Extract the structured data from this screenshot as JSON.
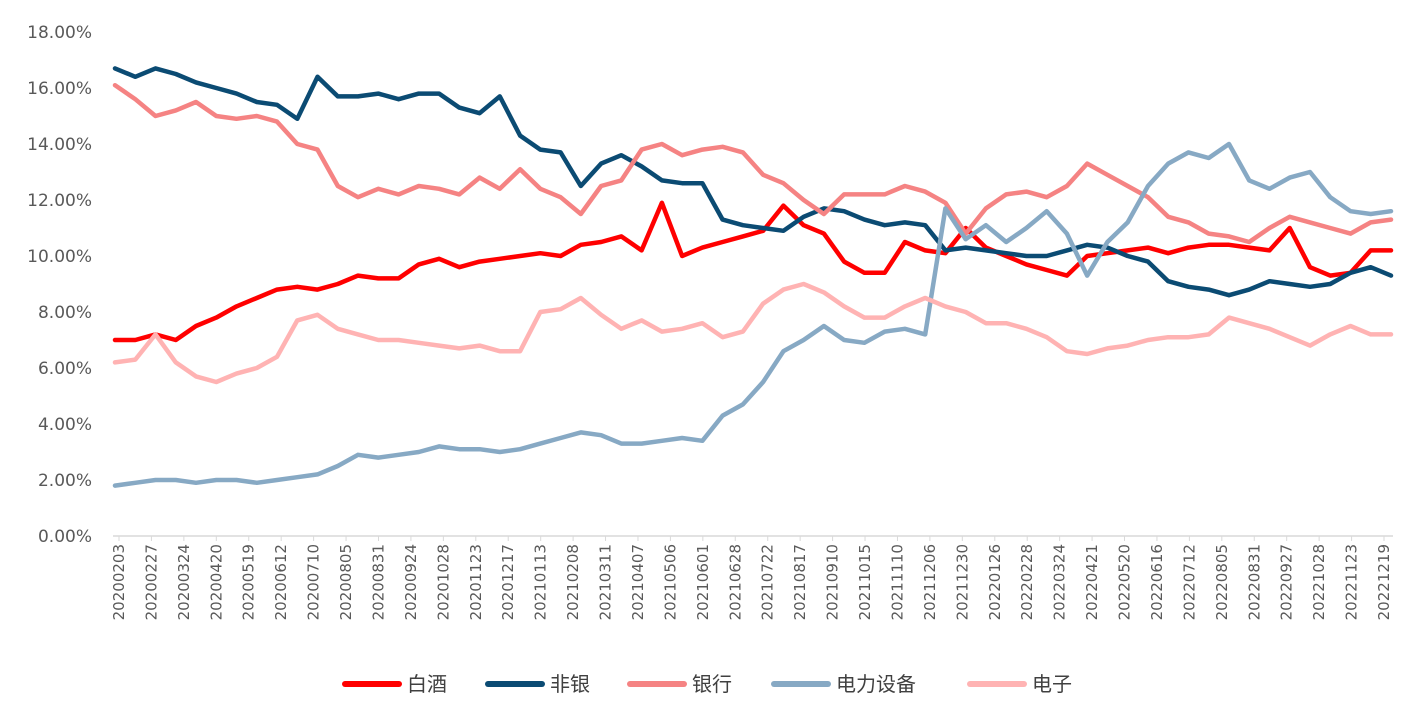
{
  "chart_data": {
    "type": "line",
    "title": "",
    "xlabel": "",
    "ylabel": "",
    "ylim": [
      0,
      0.18
    ],
    "y_ticks": [
      "0.00%",
      "2.00%",
      "4.00%",
      "6.00%",
      "8.00%",
      "10.00%",
      "12.00%",
      "14.00%",
      "16.00%",
      "18.00%"
    ],
    "x_ticks": [
      "20200203",
      "20200227",
      "20200324",
      "20200420",
      "20200519",
      "20200612",
      "20200710",
      "20200805",
      "20200831",
      "20200924",
      "20201028",
      "20201123",
      "20201217",
      "20210113",
      "20210208",
      "20210311",
      "20210407",
      "20210506",
      "20210601",
      "20210628",
      "20210722",
      "20210817",
      "20210910",
      "20211015",
      "20211110",
      "20211206",
      "20211230",
      "20220126",
      "20220228",
      "20220324",
      "20220421",
      "20220520",
      "20220616",
      "20220712",
      "20220805",
      "20220831",
      "20220927",
      "20221028",
      "20221123",
      "20221219"
    ],
    "grid": false,
    "legend_position": "bottom",
    "series": [
      {
        "name": "白酒",
        "color": "#ff0000",
        "values": [
          0.07,
          0.07,
          0.072,
          0.07,
          0.075,
          0.078,
          0.082,
          0.085,
          0.088,
          0.089,
          0.088,
          0.09,
          0.093,
          0.092,
          0.092,
          0.097,
          0.099,
          0.096,
          0.098,
          0.099,
          0.1,
          0.101,
          0.1,
          0.104,
          0.105,
          0.107,
          0.102,
          0.119,
          0.1,
          0.103,
          0.105,
          0.107,
          0.109,
          0.118,
          0.111,
          0.108,
          0.098,
          0.094,
          0.094,
          0.105,
          0.102,
          0.101,
          0.11,
          0.103,
          0.1,
          0.097,
          0.095,
          0.093,
          0.1,
          0.101,
          0.102,
          0.103,
          0.101,
          0.103,
          0.104,
          0.104,
          0.103,
          0.102,
          0.11,
          0.096,
          0.093,
          0.094,
          0.102,
          0.102
        ]
      },
      {
        "name": "非银",
        "color": "#0b4b73",
        "values": [
          0.167,
          0.164,
          0.167,
          0.165,
          0.162,
          0.16,
          0.158,
          0.155,
          0.154,
          0.149,
          0.164,
          0.157,
          0.157,
          0.158,
          0.156,
          0.158,
          0.158,
          0.153,
          0.151,
          0.157,
          0.143,
          0.138,
          0.137,
          0.125,
          0.133,
          0.136,
          0.132,
          0.127,
          0.126,
          0.126,
          0.113,
          0.111,
          0.11,
          0.109,
          0.114,
          0.117,
          0.116,
          0.113,
          0.111,
          0.112,
          0.111,
          0.102,
          0.103,
          0.102,
          0.101,
          0.1,
          0.1,
          0.102,
          0.104,
          0.103,
          0.1,
          0.098,
          0.091,
          0.089,
          0.088,
          0.086,
          0.088,
          0.091,
          0.09,
          0.089,
          0.09,
          0.094,
          0.096,
          0.093
        ]
      },
      {
        "name": "银行",
        "color": "#f58383",
        "values": [
          0.161,
          0.156,
          0.15,
          0.152,
          0.155,
          0.15,
          0.149,
          0.15,
          0.148,
          0.14,
          0.138,
          0.125,
          0.121,
          0.124,
          0.122,
          0.125,
          0.124,
          0.122,
          0.128,
          0.124,
          0.131,
          0.124,
          0.121,
          0.115,
          0.125,
          0.127,
          0.138,
          0.14,
          0.136,
          0.138,
          0.139,
          0.137,
          0.129,
          0.126,
          0.12,
          0.115,
          0.122,
          0.122,
          0.122,
          0.125,
          0.123,
          0.119,
          0.108,
          0.117,
          0.122,
          0.123,
          0.121,
          0.125,
          0.133,
          0.129,
          0.125,
          0.121,
          0.114,
          0.112,
          0.108,
          0.107,
          0.105,
          0.11,
          0.114,
          0.112,
          0.11,
          0.108,
          0.112,
          0.113
        ]
      },
      {
        "name": "电力设备",
        "color": "#87a9c4",
        "values": [
          0.018,
          0.019,
          0.02,
          0.02,
          0.019,
          0.02,
          0.02,
          0.019,
          0.02,
          0.021,
          0.022,
          0.025,
          0.029,
          0.028,
          0.029,
          0.03,
          0.032,
          0.031,
          0.031,
          0.03,
          0.031,
          0.033,
          0.035,
          0.037,
          0.036,
          0.033,
          0.033,
          0.034,
          0.035,
          0.034,
          0.043,
          0.047,
          0.055,
          0.066,
          0.07,
          0.075,
          0.07,
          0.069,
          0.073,
          0.074,
          0.072,
          0.117,
          0.106,
          0.111,
          0.105,
          0.11,
          0.116,
          0.108,
          0.093,
          0.105,
          0.112,
          0.125,
          0.133,
          0.137,
          0.135,
          0.14,
          0.127,
          0.124,
          0.128,
          0.13,
          0.121,
          0.116,
          0.115,
          0.116
        ]
      },
      {
        "name": "电子",
        "color": "#ffb3b3",
        "values": [
          0.062,
          0.063,
          0.072,
          0.062,
          0.057,
          0.055,
          0.058,
          0.06,
          0.064,
          0.077,
          0.079,
          0.074,
          0.072,
          0.07,
          0.07,
          0.069,
          0.068,
          0.067,
          0.068,
          0.066,
          0.066,
          0.08,
          0.081,
          0.085,
          0.079,
          0.074,
          0.077,
          0.073,
          0.074,
          0.076,
          0.071,
          0.073,
          0.083,
          0.088,
          0.09,
          0.087,
          0.082,
          0.078,
          0.078,
          0.082,
          0.085,
          0.082,
          0.08,
          0.076,
          0.076,
          0.074,
          0.071,
          0.066,
          0.065,
          0.067,
          0.068,
          0.07,
          0.071,
          0.071,
          0.072,
          0.078,
          0.076,
          0.074,
          0.071,
          0.068,
          0.072,
          0.075,
          0.072,
          0.072
        ]
      }
    ]
  }
}
